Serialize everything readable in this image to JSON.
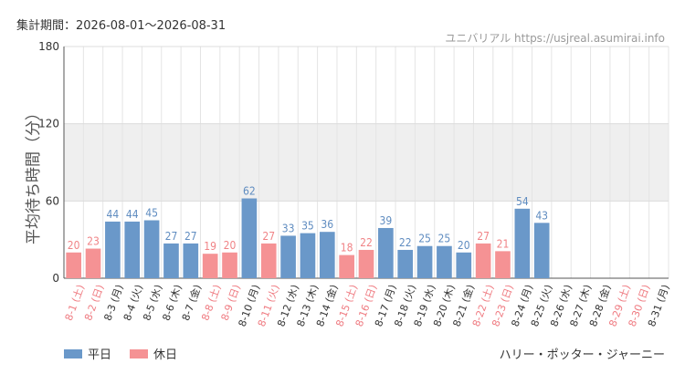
{
  "header": {
    "period": "集計期間：2026-08-01～2026-08-31",
    "watermark": "ユニバリアル https://usjreal.asumirai.info"
  },
  "footer": {
    "attraction": "ハリー・ポッター・ジャーニー"
  },
  "colors": {
    "weekday": "#6a98c9",
    "holiday": "#f59294",
    "weekday_label": "#5f8cc0",
    "holiday_label": "#f08386",
    "holiday_tick": "#ef7a80",
    "band": "#efefef"
  },
  "chart_data": {
    "type": "bar",
    "ylabel": "平均待ち時間（分）",
    "ylim": [
      0,
      180
    ],
    "yticks": [
      0,
      60,
      120,
      180
    ],
    "shaded_band": [
      60,
      120
    ],
    "legend": [
      {
        "name": "平日",
        "kind": "weekday"
      },
      {
        "name": "休日",
        "kind": "holiday"
      }
    ],
    "categories": [
      "8-1 (土)",
      "8-2 (日)",
      "8-3 (月)",
      "8-4 (火)",
      "8-5 (水)",
      "8-6 (木)",
      "8-7 (金)",
      "8-8 (土)",
      "8-9 (日)",
      "8-10 (月)",
      "8-11 (火)",
      "8-12 (水)",
      "8-13 (木)",
      "8-14 (金)",
      "8-15 (土)",
      "8-16 (日)",
      "8-17 (月)",
      "8-18 (火)",
      "8-19 (水)",
      "8-20 (木)",
      "8-21 (金)",
      "8-22 (土)",
      "8-23 (日)",
      "8-24 (月)",
      "8-25 (火)",
      "8-26 (水)",
      "8-27 (木)",
      "8-28 (金)",
      "8-29 (土)",
      "8-30 (日)",
      "8-31 (月)"
    ],
    "values": [
      20,
      23,
      44,
      44,
      45,
      27,
      27,
      19,
      20,
      62,
      27,
      33,
      35,
      36,
      18,
      22,
      39,
      22,
      25,
      25,
      20,
      27,
      21,
      54,
      43,
      null,
      null,
      null,
      null,
      null,
      null
    ],
    "kinds": [
      "holiday",
      "holiday",
      "weekday",
      "weekday",
      "weekday",
      "weekday",
      "weekday",
      "holiday",
      "holiday",
      "weekday",
      "holiday",
      "weekday",
      "weekday",
      "weekday",
      "holiday",
      "holiday",
      "weekday",
      "weekday",
      "weekday",
      "weekday",
      "weekday",
      "holiday",
      "holiday",
      "weekday",
      "weekday",
      "weekday",
      "weekday",
      "weekday",
      "holiday",
      "holiday",
      "weekday"
    ]
  }
}
